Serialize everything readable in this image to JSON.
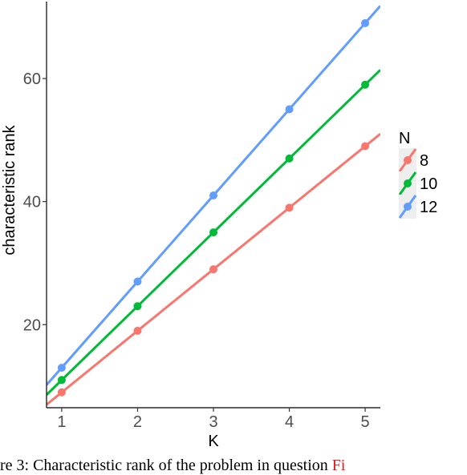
{
  "chart_data": {
    "type": "line",
    "title": "",
    "xlabel": "K",
    "ylabel": "characteristic rank",
    "x": [
      1,
      2,
      3,
      4,
      5
    ],
    "xlim": [
      0.8,
      5.2
    ],
    "ylim": [
      6.5,
      72.5
    ],
    "xticks": [
      "1",
      "2",
      "3",
      "4",
      "5"
    ],
    "yticks": [
      20,
      40,
      60
    ],
    "legend": {
      "title": "N",
      "placement": "right"
    },
    "series": [
      {
        "name": "8",
        "color": "#F8766D",
        "values": [
          9,
          19,
          29,
          39,
          49
        ],
        "slope": 10,
        "intercept": -1
      },
      {
        "name": "10",
        "color": "#00BA38",
        "values": [
          11,
          23,
          35,
          47,
          59
        ],
        "slope": 12,
        "intercept": -1
      },
      {
        "name": "12",
        "color": "#619CFF",
        "values": [
          13,
          27,
          41,
          55,
          69
        ],
        "slope": 14,
        "intercept": -1
      }
    ],
    "grid": false
  },
  "caption": {
    "text": "re 3: Characteristic rank of the problem in question",
    "ref": "Fi"
  }
}
